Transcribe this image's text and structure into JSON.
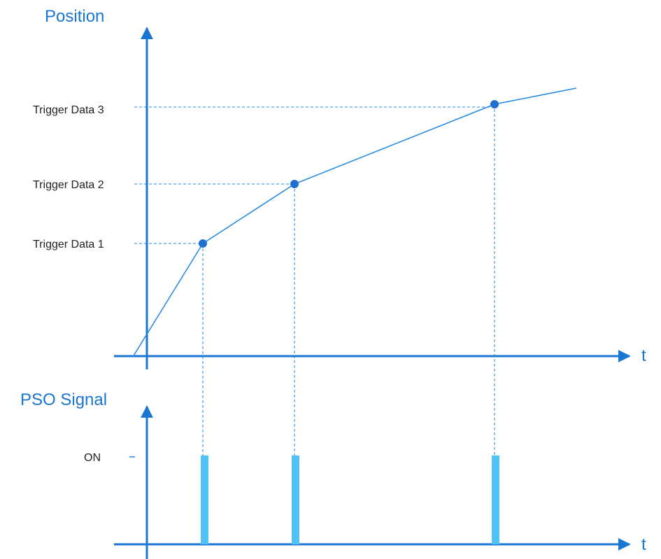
{
  "colors": {
    "axis": "#1976d2",
    "curve": "#1e88e5",
    "marker": "#1f6fd1",
    "guide": "#1e88e5",
    "pulse": "#4fc3f7",
    "label_text": "#222222"
  },
  "top_chart": {
    "y_axis_title": "Position",
    "x_axis_label": "t",
    "triggers": [
      {
        "label": "Trigger Data 1"
      },
      {
        "label": "Trigger Data 2"
      },
      {
        "label": "Trigger Data 3"
      }
    ]
  },
  "bottom_chart": {
    "y_axis_title": "PSO Signal",
    "x_axis_label": "t",
    "on_label": "ON"
  }
}
